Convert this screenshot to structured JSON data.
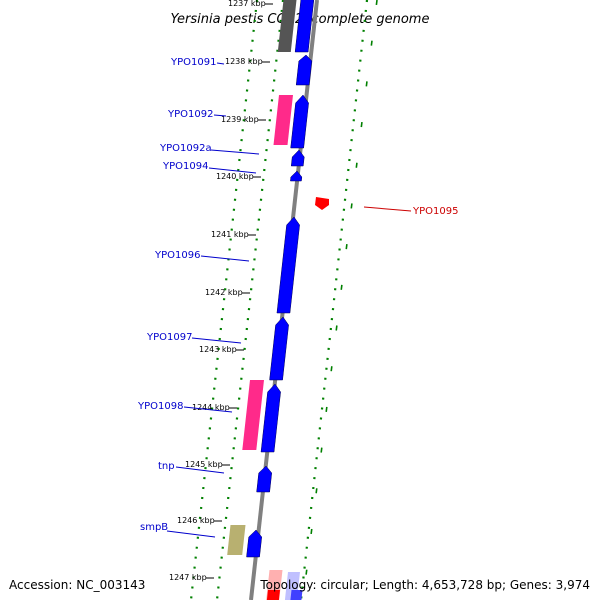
{
  "title": "Yersinia pestis CO92, complete genome",
  "footer": {
    "accession": "Accession: NC_003143",
    "summary": "Topology: circular; Length: 4,653,728 bp; Genes: 3,974"
  },
  "ticks": [
    {
      "label": "1237 kbp"
    },
    {
      "label": "1238 kbp"
    },
    {
      "label": "1239 kbp"
    },
    {
      "label": "1240 kbp"
    },
    {
      "label": "1241 kbp"
    },
    {
      "label": "1242 kbp"
    },
    {
      "label": "1243 kbp"
    },
    {
      "label": "1244 kbp"
    },
    {
      "label": "1245 kbp"
    },
    {
      "label": "1246 kbp"
    },
    {
      "label": "1247 kbp"
    }
  ],
  "genes": [
    {
      "name": "YPO1091",
      "strand": "+",
      "color": "#0000cc"
    },
    {
      "name": "YPO1092",
      "strand": "+",
      "color": "#0000cc"
    },
    {
      "name": "YPO1092a",
      "strand": "+",
      "color": "#0000cc"
    },
    {
      "name": "YPO1094",
      "strand": "+",
      "color": "#0000cc"
    },
    {
      "name": "YPO1095",
      "strand": "-",
      "color": "#cc0000"
    },
    {
      "name": "YPO1096",
      "strand": "+",
      "color": "#0000cc"
    },
    {
      "name": "YPO1097",
      "strand": "+",
      "color": "#0000cc"
    },
    {
      "name": "YPO1098",
      "strand": "+",
      "color": "#0000cc"
    },
    {
      "name": "tnp",
      "strand": "+",
      "color": "#0000cc"
    },
    {
      "name": "smpB",
      "strand": "+",
      "color": "#0000cc"
    }
  ],
  "colors": {
    "cds_plus": "#0000ff",
    "cds_minus": "#ff0000",
    "feature_pink": "#ff2a8a",
    "feature_gray": "#555555",
    "feature_khaki": "#b8b070",
    "backbone": "#808080",
    "dotted_ring": "#008000"
  }
}
